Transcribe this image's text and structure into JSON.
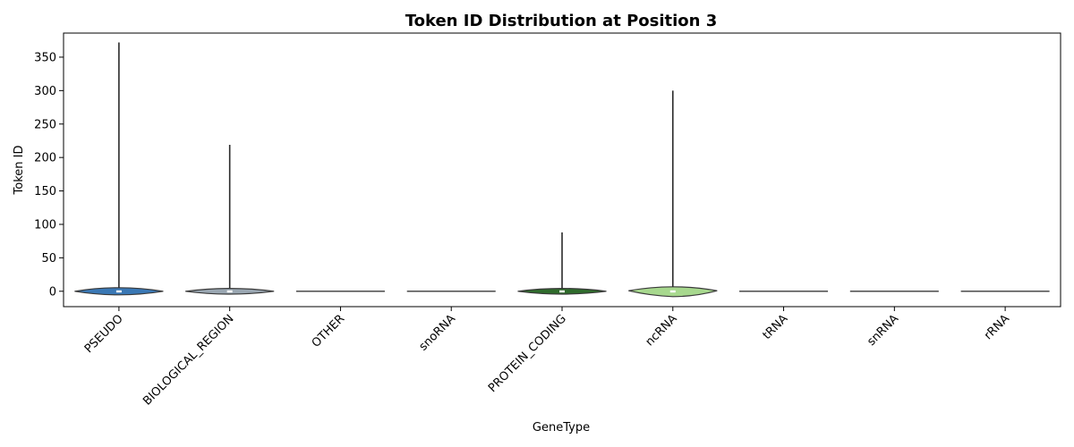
{
  "chart_data": {
    "type": "violin",
    "title": "Token ID Distribution at Position 3",
    "xlabel": "GeneType",
    "ylabel": "Token ID",
    "ylim": [
      -23,
      386
    ],
    "yticks": [
      0,
      50,
      100,
      150,
      200,
      250,
      300,
      350
    ],
    "grid": false,
    "categories": [
      "PSEUDO",
      "BIOLOGICAL_REGION",
      "OTHER",
      "snoRNA",
      "PROTEIN_CODING",
      "ncRNA",
      "tRNA",
      "snRNA",
      "rRNA"
    ],
    "series": [
      {
        "category": "PSEUDO",
        "color": "#3a78b5",
        "min": 0,
        "max": 372,
        "median": 0
      },
      {
        "category": "BIOLOGICAL_REGION",
        "color": "#9aa7b2",
        "min": 0,
        "max": 219,
        "median": 0
      },
      {
        "category": "OTHER",
        "color": "#8e8e8e",
        "min": 0,
        "max": 0,
        "median": 0
      },
      {
        "category": "snoRNA",
        "color": "#8e8e8e",
        "min": 0,
        "max": 0,
        "median": 0
      },
      {
        "category": "PROTEIN_CODING",
        "color": "#2f6b2c",
        "min": 0,
        "max": 88,
        "median": 0
      },
      {
        "category": "ncRNA",
        "color": "#a7d88e",
        "min": 0,
        "max": 300,
        "median": 0
      },
      {
        "category": "tRNA",
        "color": "#8e8e8e",
        "min": 0,
        "max": 0,
        "median": 0
      },
      {
        "category": "snRNA",
        "color": "#8e8e8e",
        "min": 0,
        "max": 0,
        "median": 0
      },
      {
        "category": "rRNA",
        "color": "#8e8e8e",
        "min": 0,
        "max": 0,
        "median": 0
      }
    ]
  }
}
